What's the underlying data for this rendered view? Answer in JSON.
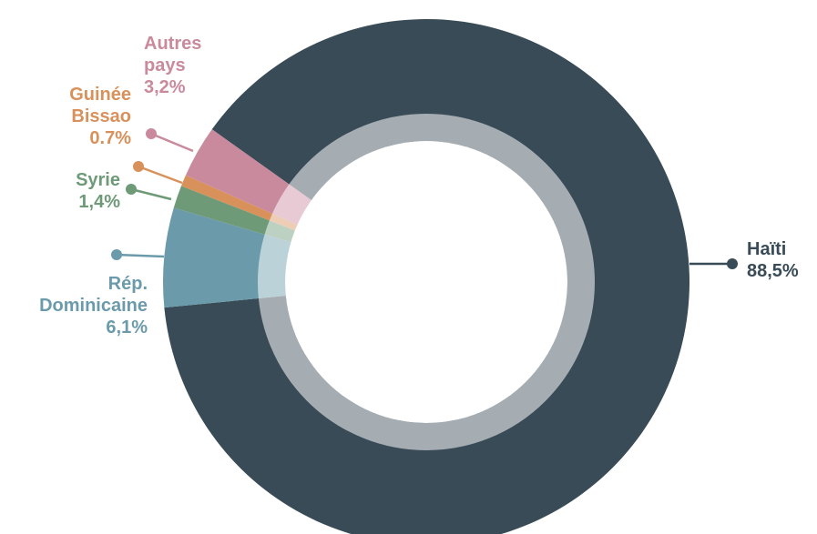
{
  "chart_data": {
    "type": "donut",
    "categories": [
      "Haïti",
      "Rép. Dominicaine",
      "Syrie",
      "Guinée Bissao",
      "Autres pays"
    ],
    "values": [
      88.5,
      6.1,
      1.4,
      0.7,
      3.2
    ],
    "value_labels": [
      "88,5%",
      "6,1%",
      "1,4%",
      "0.7%",
      "3,2%"
    ],
    "colors": [
      "#384b57",
      "#6b9bab",
      "#6e9a78",
      "#d8915b",
      "#c98a9d"
    ]
  }
}
